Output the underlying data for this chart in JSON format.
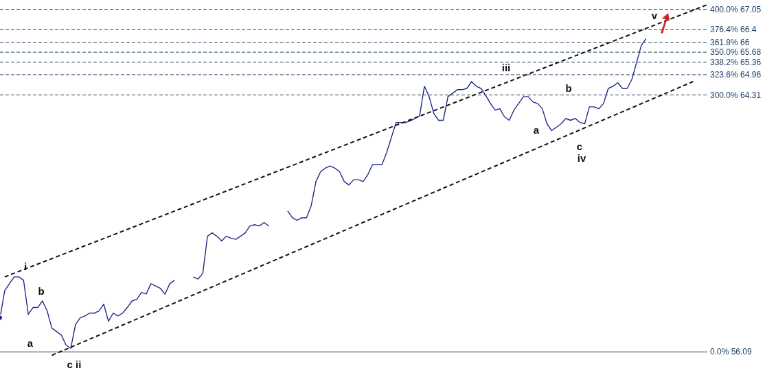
{
  "chart_data": {
    "type": "line",
    "tick_labels": false,
    "marker": "none",
    "ylim": [
      55.35,
      67.35
    ],
    "categories": [
      null,
      null,
      null,
      null,
      null,
      null,
      null,
      null,
      null,
      null,
      null,
      null,
      null,
      null,
      null,
      null,
      null,
      null,
      null,
      null,
      null,
      null,
      null,
      null,
      null,
      null,
      null,
      null,
      null,
      null,
      null,
      null,
      null,
      null,
      null,
      null,
      null,
      null,
      null,
      null,
      null,
      null,
      null,
      null,
      null,
      null,
      null,
      null,
      null,
      null,
      null,
      null,
      null,
      null,
      null,
      null,
      null,
      null,
      null,
      null,
      null,
      null,
      null,
      null,
      null,
      null,
      null,
      null,
      null,
      null,
      null,
      null,
      null,
      null,
      null,
      null,
      null,
      null,
      null,
      null,
      null,
      null,
      null,
      null,
      null,
      null,
      null,
      null,
      null,
      null,
      null,
      null,
      null,
      null,
      null,
      null,
      null,
      null,
      null,
      null,
      null,
      null,
      null,
      null,
      null,
      null,
      null,
      null,
      null,
      null,
      null,
      null,
      null,
      null,
      null,
      null,
      null,
      null,
      null,
      null,
      null,
      null,
      null,
      null,
      null,
      null,
      null,
      null,
      null,
      null,
      null,
      null,
      null,
      null,
      null,
      null,
      null,
      null,
      null,
      null,
      null,
      null,
      null,
      null,
      null,
      null,
      null,
      null,
      null,
      null,
      null
    ],
    "series": [
      {
        "color": "#232a86",
        "line_style": "solid",
        "values": [
          57.18,
          58.05,
          58.27,
          58.49,
          58.49,
          58.38,
          57.29,
          57.51,
          57.51,
          57.72,
          57.4,
          56.85,
          56.74,
          56.63,
          56.31,
          56.2,
          56.96,
          57.18,
          57.24,
          57.33,
          57.33,
          57.4,
          57.62,
          57.07,
          57.33,
          57.24,
          57.33,
          57.51,
          57.72,
          57.77,
          57.99,
          57.94,
          58.27,
          58.2,
          58.12,
          57.94,
          58.27,
          58.38,
          null,
          null,
          null,
          58.49,
          58.42,
          58.6,
          59.79,
          59.9,
          59.79,
          59.64,
          59.79,
          59.73,
          59.69,
          59.79,
          59.9,
          60.12,
          60.16,
          60.12,
          60.23,
          60.12,
          null,
          null,
          null,
          60.6,
          60.38,
          60.3,
          60.38,
          60.38,
          60.77,
          61.54,
          61.86,
          61.97,
          62.04,
          61.97,
          61.86,
          61.54,
          61.43,
          61.6,
          61.6,
          61.54,
          61.76,
          62.08,
          62.08,
          62.08,
          62.47,
          62.95,
          63.43,
          63.43,
          63.43,
          63.48,
          63.56,
          63.65,
          64.59,
          64.26,
          63.72,
          63.5,
          63.5,
          64.26,
          64.37,
          64.48,
          64.48,
          64.52,
          64.74,
          64.59,
          64.52,
          64.3,
          64.04,
          63.83,
          63.87,
          63.61,
          63.5,
          63.83,
          64.04,
          64.26,
          64.26,
          64.09,
          64.04,
          63.87,
          63.39,
          63.17,
          63.28,
          63.39,
          63.56,
          63.5,
          63.56,
          63.43,
          63.39,
          63.93,
          63.93,
          63.87,
          64.04,
          64.52,
          64.59,
          64.7,
          64.52,
          64.52,
          64.81,
          65.35,
          65.9,
          66.11,
          null,
          null,
          null,
          null,
          null,
          null,
          null,
          null,
          null,
          null,
          null,
          null,
          null
        ]
      },
      {
        "color": "#111111",
        "line_style": "dashed",
        "values": [
          null,
          58.49,
          null,
          null,
          null,
          null,
          null,
          null,
          null,
          null,
          null,
          null,
          null,
          null,
          null,
          null,
          null,
          null,
          null,
          null,
          null,
          null,
          null,
          null,
          null,
          null,
          null,
          null,
          null,
          null,
          null,
          null,
          null,
          null,
          null,
          null,
          null,
          null,
          null,
          null,
          null,
          null,
          null,
          null,
          null,
          null,
          null,
          null,
          null,
          null,
          null,
          null,
          null,
          null,
          null,
          null,
          null,
          null,
          null,
          null,
          null,
          null,
          null,
          null,
          null,
          null,
          null,
          null,
          null,
          null,
          null,
          null,
          null,
          null,
          null,
          null,
          null,
          null,
          null,
          null,
          null,
          null,
          null,
          null,
          null,
          null,
          null,
          null,
          null,
          null,
          null,
          null,
          null,
          null,
          null,
          null,
          null,
          null,
          null,
          null,
          null,
          null,
          null,
          null,
          null,
          null,
          null,
          null,
          null,
          null,
          null,
          null,
          null,
          null,
          null,
          null,
          null,
          null,
          null,
          null,
          null,
          null,
          null,
          null,
          null,
          null,
          null,
          null,
          null,
          null,
          null,
          null,
          null,
          null,
          null,
          null,
          null,
          null,
          null,
          null,
          null,
          null,
          null,
          null,
          null,
          null,
          null,
          null,
          null,
          null,
          67.2
        ]
      },
      {
        "color": "#111111",
        "line_style": "dashed",
        "values": [
          null,
          null,
          null,
          null,
          null,
          null,
          null,
          null,
          null,
          null,
          null,
          55.98,
          null,
          null,
          null,
          null,
          null,
          null,
          null,
          null,
          null,
          null,
          null,
          null,
          null,
          null,
          null,
          null,
          null,
          null,
          null,
          null,
          null,
          null,
          null,
          null,
          null,
          null,
          null,
          null,
          null,
          null,
          null,
          null,
          null,
          null,
          null,
          null,
          null,
          null,
          null,
          null,
          null,
          null,
          null,
          null,
          null,
          null,
          null,
          null,
          null,
          null,
          null,
          null,
          null,
          null,
          null,
          null,
          null,
          null,
          null,
          null,
          null,
          null,
          null,
          null,
          null,
          null,
          null,
          null,
          null,
          null,
          null,
          null,
          null,
          null,
          null,
          null,
          null,
          null,
          null,
          null,
          null,
          null,
          null,
          null,
          null,
          null,
          null,
          null,
          null,
          null,
          null,
          null,
          null,
          null,
          null,
          null,
          null,
          null,
          null,
          null,
          null,
          null,
          null,
          null,
          null,
          null,
          null,
          null,
          null,
          null,
          null,
          null,
          null,
          null,
          null,
          null,
          null,
          null,
          null,
          null,
          null,
          null,
          null,
          null,
          null,
          null,
          null,
          null,
          null,
          null,
          null,
          null,
          null,
          null,
          null,
          64.74,
          null,
          null,
          null
        ]
      }
    ],
    "ref_lines": [
      {
        "axis": "y",
        "value": 67.05,
        "label": "400.0% 67.05",
        "color": "#1f4068",
        "line_style": "dashed"
      },
      {
        "axis": "y",
        "value": 66.4,
        "label": "376.4% 66.4",
        "color": "#1f4068",
        "line_style": "dashed"
      },
      {
        "axis": "y",
        "value": 66,
        "label": "361.8% 66",
        "color": "#1f4068",
        "line_style": "dashed"
      },
      {
        "axis": "y",
        "value": 65.68,
        "label": "350.0% 65.68",
        "color": "#1f4068",
        "line_style": "dashed"
      },
      {
        "axis": "y",
        "value": 65.36,
        "label": "338.2% 65.36",
        "color": "#1f4068",
        "line_style": "dashed"
      },
      {
        "axis": "y",
        "value": 64.96,
        "label": "323.6% 64.96",
        "color": "#1f4068",
        "line_style": "dashed"
      },
      {
        "axis": "y",
        "value": 64.31,
        "label": "300.0% 64.31",
        "color": "#1f4068",
        "line_style": "dashed"
      },
      {
        "axis": "y",
        "value": 56.09,
        "label": "0.0% 56.09",
        "color": "#1f4068",
        "line_style": "solid"
      }
    ],
    "annotations": [
      "i",
      "b",
      "a",
      "c ii",
      "iii",
      "a",
      "b",
      "c",
      "iv",
      "v"
    ]
  }
}
